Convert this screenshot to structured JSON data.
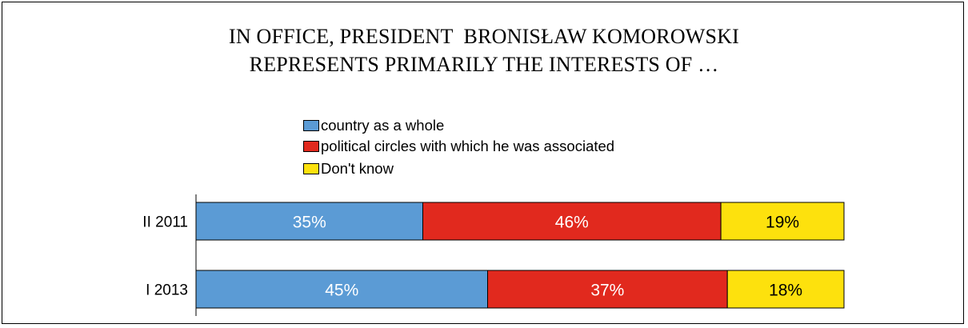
{
  "chart_data": {
    "type": "bar",
    "orientation": "horizontal",
    "stacked": "100%",
    "title": [
      "IN OFFICE, PRESIDENT  BRONISŁAW KOMOROWSKI",
      "REPRESENTS PRIMARILY THE INTERESTS OF …"
    ],
    "categories": [
      "II 2011",
      "I 2013"
    ],
    "category_display": [
      "II 2011",
      "I 2013"
    ],
    "series": [
      {
        "name": "country as a whole",
        "values": [
          35,
          45
        ],
        "labels": [
          "35%",
          "45%"
        ],
        "color": "#5b9bd5",
        "label_color": "#ffffff"
      },
      {
        "name": "political circles with which he was associated",
        "values": [
          46,
          37
        ],
        "labels": [
          "46%",
          "37%"
        ],
        "color": "#e1291e",
        "label_color": "#ffffff"
      },
      {
        "name": "Don't know",
        "values": [
          19,
          18
        ],
        "labels": [
          "19%",
          "18%"
        ],
        "color": "#fde10d",
        "label_color": "#000000"
      }
    ],
    "xlim": [
      0,
      100
    ],
    "grid": false,
    "legend_position": "top-center"
  }
}
